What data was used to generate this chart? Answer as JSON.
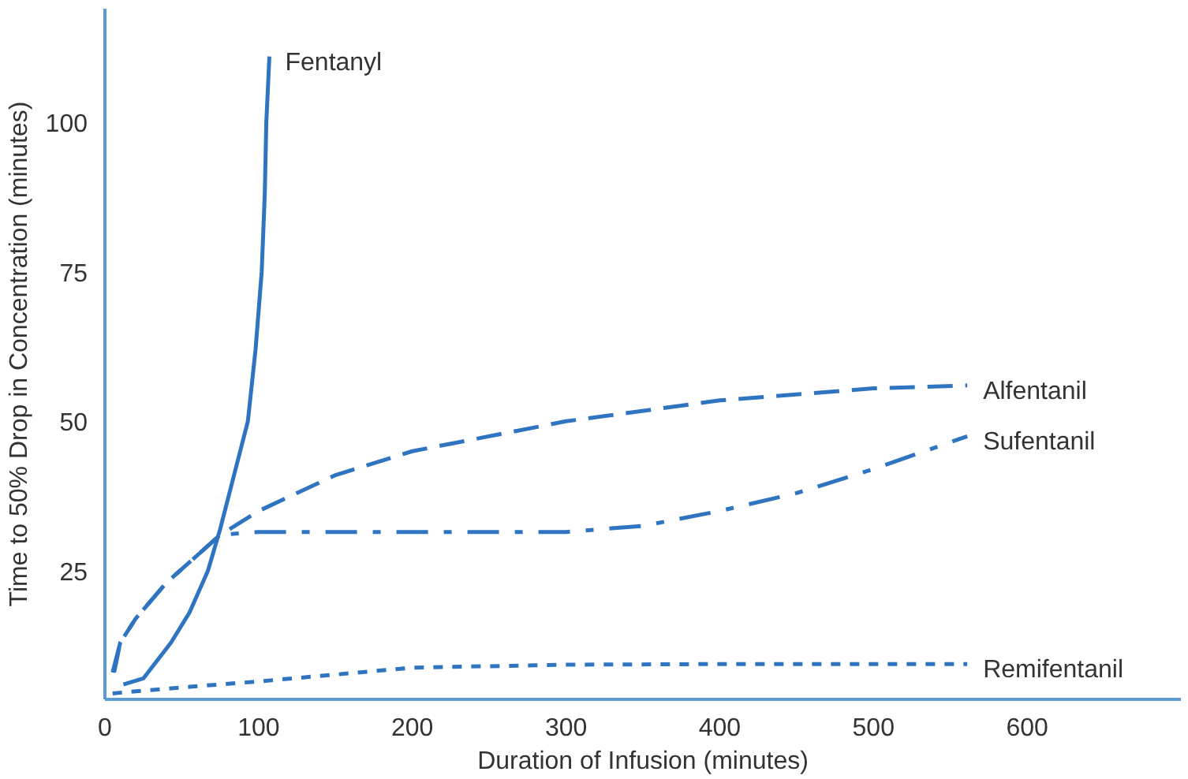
{
  "chart_data": {
    "type": "line",
    "xlabel": "Duration of Infusion (minutes)",
    "ylabel": "Time to 50% Drop in Concentration (minutes)",
    "xlim": [
      0,
      700
    ],
    "ylim": [
      3.5,
      119
    ],
    "xticks": [
      0,
      100,
      200,
      300,
      400,
      500,
      600
    ],
    "yticks": [
      25,
      50,
      75,
      100
    ],
    "grid": false,
    "marker": "none",
    "series": [
      {
        "name": "Fentanyl",
        "color": "#2f74c0",
        "line_style": "solid",
        "x": [
          12,
          25,
          43,
          55,
          67,
          75,
          85,
          93,
          98,
          102,
          104,
          105,
          107
        ],
        "values": [
          6,
          7,
          13,
          18,
          25,
          32,
          42,
          50,
          62,
          75,
          88,
          100,
          111
        ]
      },
      {
        "name": "Alfentanil",
        "color": "#2f74c0",
        "line_style": "dashed",
        "x": [
          6,
          10,
          20,
          40,
          75,
          100,
          150,
          200,
          300,
          400,
          500,
          561
        ],
        "values": [
          8,
          13,
          17,
          23,
          31,
          35,
          41,
          45,
          50,
          53.5,
          55.5,
          56
        ]
      },
      {
        "name": "Sufentanil",
        "color": "#2f74c0",
        "line_style": "dashdot",
        "x": [
          5,
          10,
          20,
          40,
          75,
          100,
          200,
          300,
          350,
          400,
          450,
          500,
          561
        ],
        "values": [
          8,
          13,
          17,
          23,
          31,
          31.5,
          31.5,
          31.5,
          32.5,
          35,
          38,
          42,
          47.5
        ]
      },
      {
        "name": "Remifentanil",
        "color": "#2f74c0",
        "line_style": "dotted",
        "x": [
          5,
          50,
          100,
          200,
          300,
          400,
          561
        ],
        "values": [
          4.5,
          5.5,
          6.5,
          8.8,
          9.3,
          9.4,
          9.4
        ]
      }
    ]
  }
}
